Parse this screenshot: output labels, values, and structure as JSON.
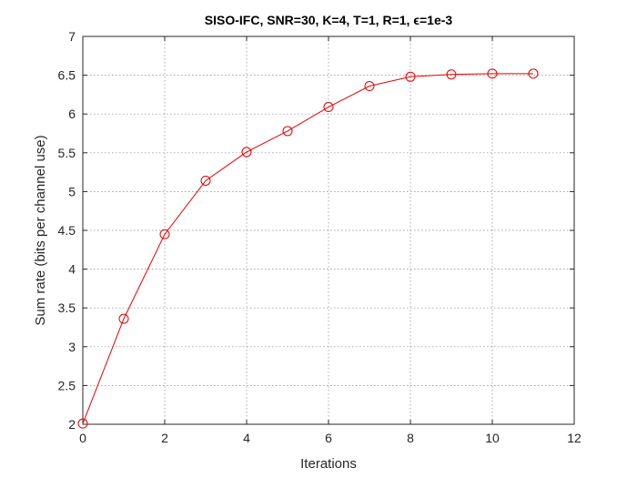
{
  "chart_data": {
    "type": "line",
    "title": "SISO-IFC, SNR=30, K=4, T=1, R=1, ϵ=1e-3",
    "xlabel": "Iterations",
    "ylabel": "Sum rate (bits per channel use)",
    "xlim": [
      0,
      12
    ],
    "ylim": [
      2,
      7
    ],
    "xticks": [
      "0",
      "2",
      "4",
      "6",
      "8",
      "10",
      "12"
    ],
    "yticks": [
      "2",
      "2.5",
      "3",
      "3.5",
      "4",
      "4.5",
      "5",
      "5.5",
      "6",
      "6.5",
      "7"
    ],
    "grid": true,
    "legend": "none",
    "series": [
      {
        "color": "#e60000",
        "marker": "circle",
        "x": [
          0,
          1,
          2,
          3,
          4,
          5,
          6,
          7,
          8,
          9,
          10,
          11
        ],
        "y": [
          2.01,
          3.36,
          4.45,
          5.14,
          5.51,
          5.78,
          6.09,
          6.36,
          6.48,
          6.51,
          6.52,
          6.52
        ]
      }
    ]
  }
}
